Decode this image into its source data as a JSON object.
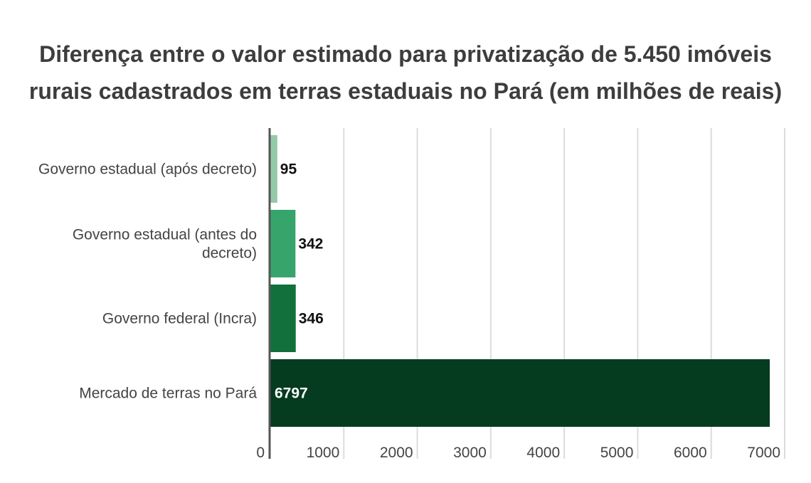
{
  "chart_data": {
    "type": "bar",
    "orientation": "horizontal",
    "title_lines": [
      "Diferença entre o valor estimado para privatização de 5.450 imóveis",
      "rurais cadastrados em terras estaduais no Pará (em milhões de reais)"
    ],
    "categories": [
      [
        "Governo estadual (após decreto)"
      ],
      [
        "Governo estadual (antes do",
        "decreto)"
      ],
      [
        "Governo federal (Incra)"
      ],
      [
        "Mercado de terras no Pará"
      ]
    ],
    "values": [
      95,
      342,
      346,
      6797
    ],
    "data_labels": [
      "95",
      "342",
      "346",
      "6797"
    ],
    "bar_colors": [
      "#93c9a8",
      "#37a56b",
      "#11703c",
      "#053b1f"
    ],
    "data_label_colors": [
      "#111111",
      "#111111",
      "#111111",
      "#ffffff"
    ],
    "x_ticks": [
      0,
      1000,
      2000,
      3000,
      4000,
      5000,
      6000,
      7000
    ],
    "x_tick_labels": [
      "0",
      "1000",
      "2000",
      "3000",
      "4000",
      "5000",
      "6000",
      "7000"
    ],
    "xlim": [
      0,
      7000
    ],
    "xlabel": "",
    "ylabel": "",
    "grid": true,
    "legend": "none",
    "gridline_color": "#dcdcdc",
    "axis_color": "#555555"
  }
}
